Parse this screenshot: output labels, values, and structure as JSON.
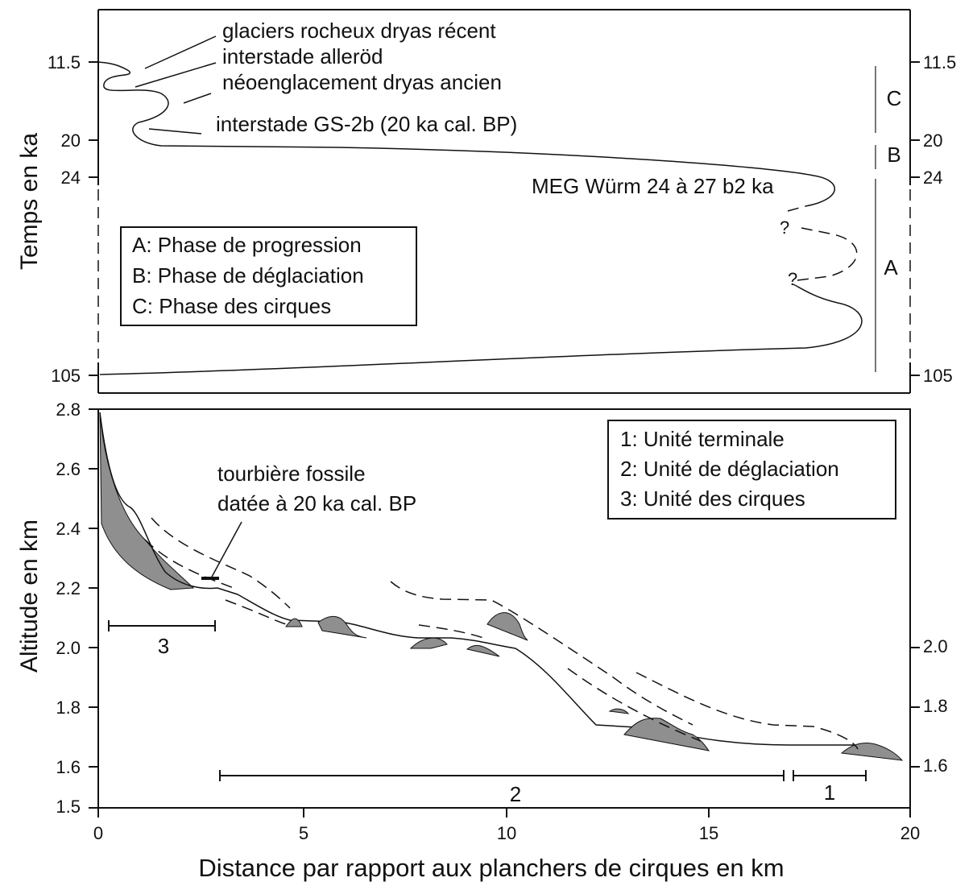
{
  "top_panel": {
    "y_label": "Temps en ka",
    "yticks": [
      "11.5",
      "20",
      "24",
      "105"
    ],
    "annotations": [
      "glaciers rocheux dryas récent",
      "interstade alleröd",
      "néoenglacement dryas ancien",
      "interstade GS-2b (20 ka cal. BP)",
      "MEG Würm 24 à 27 b2 ka"
    ],
    "question_marks": [
      "?",
      "?"
    ],
    "phases": [
      "C",
      "B",
      "A"
    ],
    "legend": [
      "A: Phase de progression",
      "B: Phase de déglaciation",
      "C: Phase des cirques"
    ]
  },
  "bottom_panel": {
    "y_label": "Altitude en km",
    "yticks": [
      "2.8",
      "2.6",
      "2.4",
      "2.2",
      "2.0",
      "1.8",
      "1.6",
      "1.5"
    ],
    "y2ticks": [
      "2.0",
      "1.8",
      "1.6"
    ],
    "xticks": [
      "0",
      "5",
      "10",
      "15",
      "20"
    ],
    "x_label": "Distance par rapport aux planchers de cirques en km",
    "annotation": [
      "tourbière fossile",
      "datée à 20 ka cal. BP"
    ],
    "legend": [
      "1: Unité terminale",
      "2: Unité de déglaciation",
      "3: Unité des cirques"
    ],
    "units": [
      "3",
      "2",
      "1"
    ]
  }
}
